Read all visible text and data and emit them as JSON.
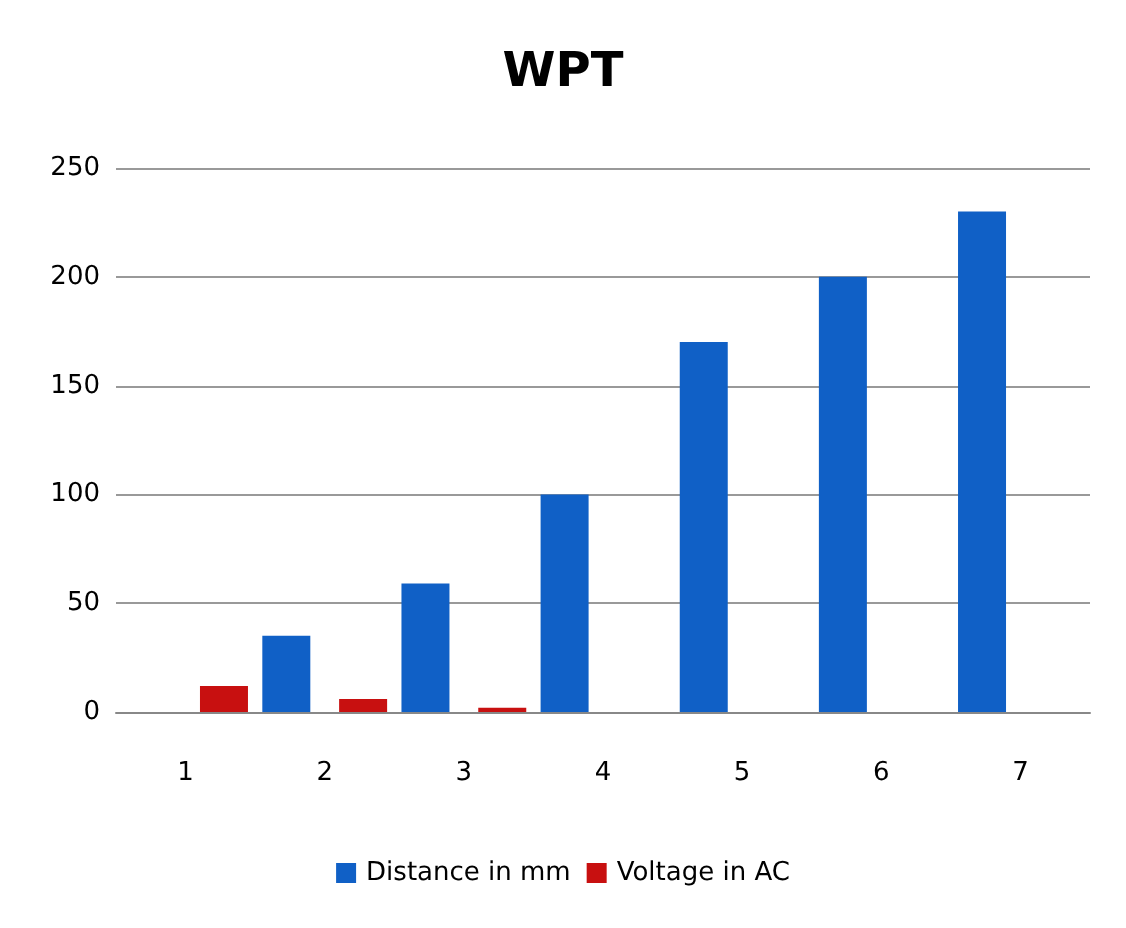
{
  "chart_data": {
    "type": "bar",
    "title": "WPT",
    "categories": [
      "1",
      "2",
      "3",
      "4",
      "5",
      "6",
      "7"
    ],
    "series": [
      {
        "name": "Distance in mm",
        "color": "#1060c6",
        "values": [
          null,
          35,
          59,
          100,
          170,
          200,
          230
        ]
      },
      {
        "name": "Voltage in AC",
        "color": "#c81010",
        "values": [
          12,
          6,
          2,
          null,
          null,
          null,
          null
        ]
      }
    ],
    "ylim": [
      0,
      250
    ],
    "yticks": [
      0,
      50,
      100,
      150,
      200,
      250
    ],
    "grid": "y",
    "legend": "bottom"
  }
}
